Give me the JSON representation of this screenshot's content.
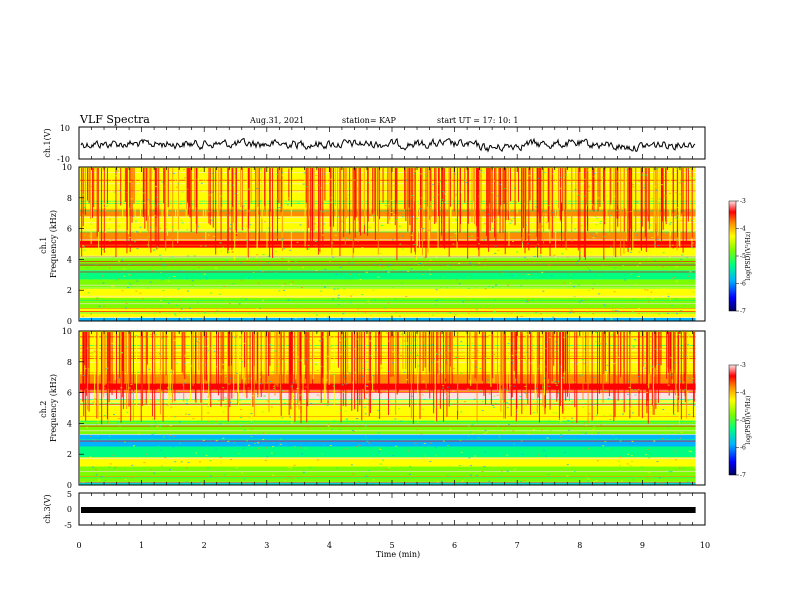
{
  "header": {
    "title": "VLF Spectra",
    "date": "Aug.31, 2021",
    "station": "station= KAP",
    "start": "start  UT =   17: 10: 1"
  },
  "colors": {
    "waveform": "#000000",
    "colormap": [
      "#00005a",
      "#0000ff",
      "#00b4ff",
      "#00ff80",
      "#7cfc00",
      "#ffff00",
      "#ff8c00",
      "#ff0000",
      "#ffe4e4"
    ]
  },
  "chart_data": [
    {
      "type": "line",
      "ylabel": "ch.1(V)",
      "ylim": [
        -10,
        10
      ],
      "yticks": [
        "10",
        "-10"
      ],
      "xlim": [
        0,
        10
      ]
    },
    {
      "type": "heatmap",
      "ylabel": "ch.1\nFrequency (kHz)",
      "ylim": [
        0,
        10
      ],
      "yticks": [
        "0",
        "2",
        "4",
        "6",
        "8",
        "10"
      ],
      "data_extent_min": 9.85,
      "colorbar": {
        "label": "log(PSD)(V²/Hz)",
        "ticks": [
          "-3",
          "-4",
          "-5",
          "-6",
          "-7"
        ],
        "range": [
          -7,
          -3
        ]
      }
    },
    {
      "type": "heatmap",
      "ylabel": "ch.2\nFrequency (kHz)",
      "ylim": [
        0,
        10
      ],
      "yticks": [
        "0",
        "2",
        "4",
        "6",
        "8",
        "10"
      ],
      "data_extent_min": 9.85,
      "colorbar": {
        "label": "log(PSD)(V²/Hz)",
        "ticks": [
          "-3",
          "-4",
          "-5",
          "-6",
          "-7"
        ],
        "range": [
          -7,
          -3
        ]
      }
    },
    {
      "type": "line",
      "ylabel": "ch.3(V)",
      "ylim": [
        -5,
        5
      ],
      "yticks": [
        "5",
        "0",
        "-5"
      ],
      "xlim": [
        0,
        10
      ],
      "xlabel": "Time  (min)",
      "xticks": [
        "0",
        "1",
        "2",
        "3",
        "4",
        "5",
        "6",
        "7",
        "8",
        "9",
        "10"
      ]
    }
  ]
}
